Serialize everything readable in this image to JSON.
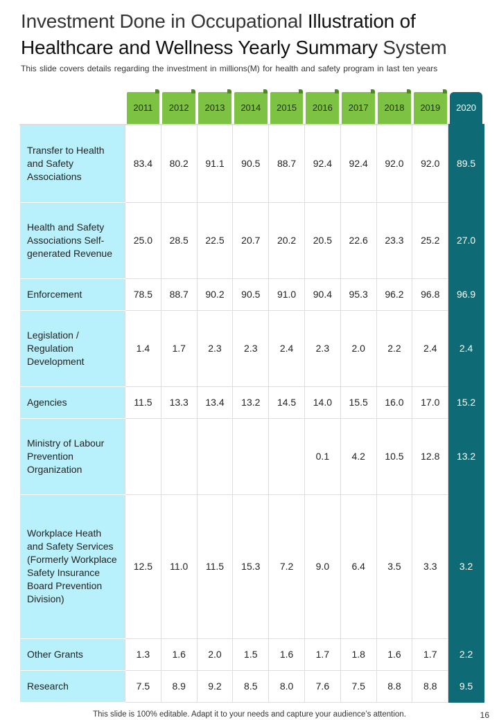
{
  "title": {
    "line1_a": "Investment Done in Occupational ",
    "line1_b": "Illustration of",
    "line2_a": "Healthcare and Wellness Yearly Summary ",
    "line2_b": "System"
  },
  "subtitle": "This slide covers details regarding the investment in millions(M) for health and safety program in last ten years",
  "table": {
    "years": [
      "2011",
      "2012",
      "2013",
      "2014",
      "2015",
      "2016",
      "2017",
      "2018",
      "2019",
      "2020"
    ],
    "rows": [
      {
        "label": "Transfer to Health and Safety Associations",
        "values": [
          "83.4",
          "80.2",
          "91.1",
          "90.5",
          "88.7",
          "92.4",
          "92.4",
          "92.0",
          "92.0",
          "89.5"
        ]
      },
      {
        "label": "Health and Safety Associations Self-generated Revenue",
        "values": [
          "25.0",
          "28.5",
          "22.5",
          "20.7",
          "20.2",
          "20.5",
          "22.6",
          "23.3",
          "25.2",
          "27.0"
        ]
      },
      {
        "label": "Enforcement",
        "values": [
          "78.5",
          "88.7",
          "90.2",
          "90.5",
          "91.0",
          "90.4",
          "95.3",
          "96.2",
          "96.8",
          "96.9"
        ]
      },
      {
        "label": "Legislation / Regulation Development",
        "values": [
          "1.4",
          "1.7",
          "2.3",
          "2.3",
          "2.4",
          "2.3",
          "2.0",
          "2.2",
          "2.4",
          "2.4"
        ]
      },
      {
        "label": "Agencies",
        "values": [
          "11.5",
          "13.3",
          "13.4",
          "13.2",
          "14.5",
          "14.0",
          "15.5",
          "16.0",
          "17.0",
          "15.2"
        ]
      },
      {
        "label": "Ministry of Labour Prevention Organization",
        "values": [
          "",
          "",
          "",
          "",
          "",
          "0.1",
          "4.2",
          "10.5",
          "12.8",
          "13.2"
        ]
      },
      {
        "label": "Workplace Heath and Safety Services (Formerly Workplace Safety Insurance Board Prevention Division)",
        "values": [
          "12.5",
          "11.0",
          "11.5",
          "15.3",
          "7.2",
          "9.0",
          "6.4",
          "3.5",
          "3.3",
          "3.2"
        ]
      },
      {
        "label": "Other Grants",
        "values": [
          "1.3",
          "1.6",
          "2.0",
          "1.5",
          "1.6",
          "1.7",
          "1.8",
          "1.6",
          "1.7",
          "2.2"
        ]
      },
      {
        "label": "Research",
        "values": [
          "7.5",
          "8.9",
          "9.2",
          "8.5",
          "8.0",
          "7.6",
          "7.5",
          "8.8",
          "8.8",
          "9.5"
        ]
      }
    ]
  },
  "footer": "This slide is 100% editable. Adapt it to your needs and capture your audience’s attention.",
  "page_number": "16",
  "colors": {
    "year_tab": "#7dc242",
    "highlight": "#0e6a74",
    "label_bg": "#b8f1fb"
  }
}
